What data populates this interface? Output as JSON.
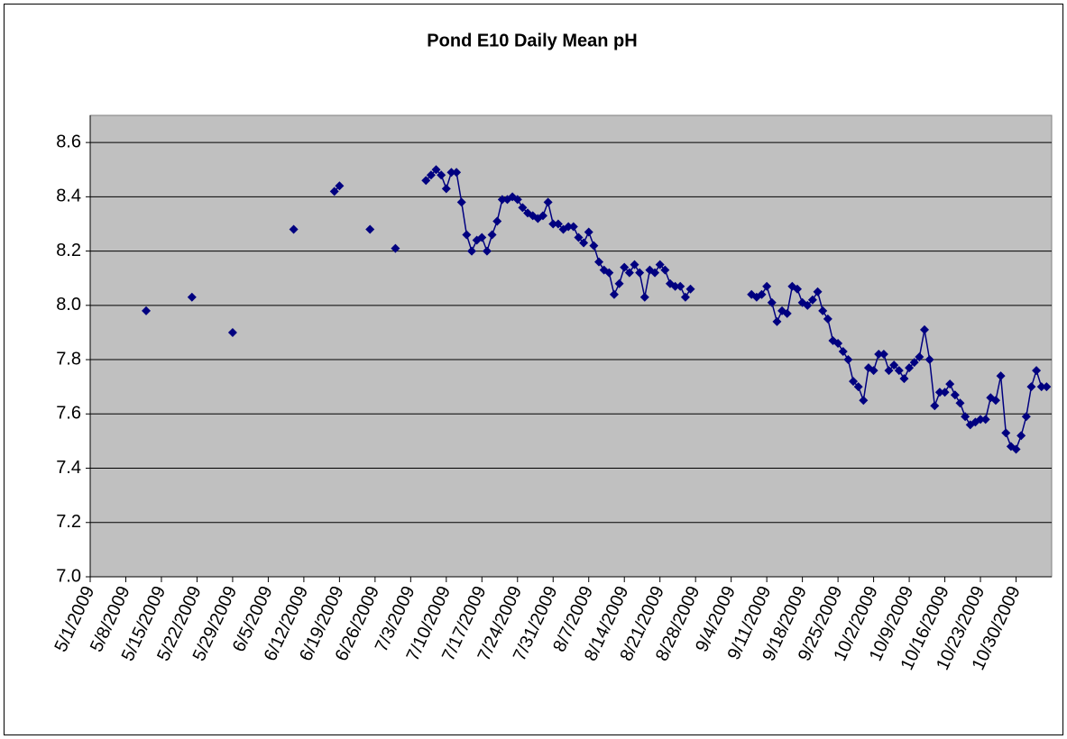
{
  "chart_data": {
    "type": "line",
    "title": "Pond E10 Daily Mean pH",
    "x": [
      "5/12/2009",
      "5/13/2009",
      "5/21/2009",
      "5/22/2009",
      "5/29/2009",
      "5/30/2009",
      "6/10/2009",
      "6/11/2009",
      "6/18/2009",
      "6/19/2009",
      "6/20/2009",
      "6/25/2009",
      "6/26/2009",
      "6/30/2009",
      "7/1/2009",
      "7/6/2009",
      "7/7/2009",
      "7/8/2009",
      "7/9/2009",
      "7/10/2009",
      "7/11/2009",
      "7/12/2009",
      "7/13/2009",
      "7/14/2009",
      "7/15/2009",
      "7/16/2009",
      "7/17/2009",
      "7/18/2009",
      "7/19/2009",
      "7/20/2009",
      "7/21/2009",
      "7/22/2009",
      "7/23/2009",
      "7/24/2009",
      "7/25/2009",
      "7/26/2009",
      "7/27/2009",
      "7/28/2009",
      "7/29/2009",
      "7/30/2009",
      "7/31/2009",
      "8/1/2009",
      "8/2/2009",
      "8/3/2009",
      "8/4/2009",
      "8/5/2009",
      "8/6/2009",
      "8/7/2009",
      "8/8/2009",
      "8/9/2009",
      "8/10/2009",
      "8/11/2009",
      "8/12/2009",
      "8/13/2009",
      "8/14/2009",
      "8/15/2009",
      "8/16/2009",
      "8/17/2009",
      "8/18/2009",
      "8/19/2009",
      "8/20/2009",
      "8/21/2009",
      "8/22/2009",
      "8/23/2009",
      "8/24/2009",
      "8/25/2009",
      "8/26/2009",
      "8/27/2009",
      "8/28/2009",
      "9/8/2009",
      "9/9/2009",
      "9/10/2009",
      "9/11/2009",
      "9/12/2009",
      "9/13/2009",
      "9/14/2009",
      "9/15/2009",
      "9/16/2009",
      "9/17/2009",
      "9/18/2009",
      "9/19/2009",
      "9/20/2009",
      "9/21/2009",
      "9/22/2009",
      "9/23/2009",
      "9/24/2009",
      "9/25/2009",
      "9/26/2009",
      "9/27/2009",
      "9/28/2009",
      "9/29/2009",
      "9/30/2009",
      "10/1/2009",
      "10/2/2009",
      "10/3/2009",
      "10/4/2009",
      "10/5/2009",
      "10/6/2009",
      "10/7/2009",
      "10/8/2009",
      "10/9/2009",
      "10/10/2009",
      "10/11/2009",
      "10/12/2009",
      "10/13/2009",
      "10/14/2009",
      "10/15/2009",
      "10/16/2009",
      "10/17/2009",
      "10/18/2009",
      "10/19/2009",
      "10/20/2009",
      "10/21/2009",
      "10/22/2009",
      "10/23/2009",
      "10/24/2009",
      "10/25/2009",
      "10/26/2009",
      "10/27/2009",
      "10/28/2009",
      "10/29/2009",
      "10/30/2009",
      "10/31/2009",
      "11/1/2009",
      "11/2/2009",
      "11/3/2009",
      "11/4/2009",
      "11/5/2009"
    ],
    "series": [
      {
        "color": "#000080",
        "values": [
          7.98,
          null,
          8.03,
          null,
          7.9,
          null,
          8.28,
          null,
          8.42,
          8.44,
          null,
          8.28,
          null,
          8.21,
          null,
          8.46,
          8.48,
          8.5,
          8.48,
          8.43,
          8.49,
          8.49,
          8.38,
          8.26,
          8.2,
          8.24,
          8.25,
          8.2,
          8.26,
          8.31,
          8.39,
          8.39,
          8.4,
          8.39,
          8.36,
          8.34,
          8.33,
          8.32,
          8.33,
          8.38,
          8.3,
          8.3,
          8.28,
          8.29,
          8.29,
          8.25,
          8.23,
          8.27,
          8.22,
          8.16,
          8.13,
          8.12,
          8.04,
          8.08,
          8.14,
          8.12,
          8.15,
          8.12,
          8.03,
          8.13,
          8.12,
          8.15,
          8.13,
          8.08,
          8.07,
          8.07,
          8.03,
          8.06,
          null,
          8.04,
          8.03,
          8.04,
          8.07,
          8.01,
          7.94,
          7.98,
          7.97,
          8.07,
          8.06,
          8.01,
          8.0,
          8.02,
          8.05,
          7.98,
          7.95,
          7.87,
          7.86,
          7.83,
          7.8,
          7.72,
          7.7,
          7.65,
          7.77,
          7.76,
          7.82,
          7.82,
          7.76,
          7.78,
          7.76,
          7.73,
          7.77,
          7.79,
          7.81,
          7.91,
          7.8,
          7.63,
          7.68,
          7.68,
          7.71,
          7.67,
          7.64,
          7.59,
          7.56,
          7.57,
          7.58,
          7.58,
          7.66,
          7.65,
          7.74,
          7.53,
          7.48,
          7.47,
          7.52,
          7.59,
          7.7,
          7.76,
          7.7,
          7.7
        ]
      }
    ],
    "xlim": [
      "5/1/2009",
      "11/6/2009"
    ],
    "xticks": [
      "5/1/2009",
      "5/8/2009",
      "5/15/2009",
      "5/22/2009",
      "5/29/2009",
      "6/5/2009",
      "6/12/2009",
      "6/19/2009",
      "6/26/2009",
      "7/3/2009",
      "7/10/2009",
      "7/17/2009",
      "7/24/2009",
      "7/31/2009",
      "8/7/2009",
      "8/14/2009",
      "8/21/2009",
      "8/28/2009",
      "9/4/2009",
      "9/11/2009",
      "9/18/2009",
      "9/25/2009",
      "10/2/2009",
      "10/9/2009",
      "10/16/2009",
      "10/23/2009",
      "10/30/2009"
    ],
    "ylim": [
      7.0,
      8.7
    ],
    "yticks": [
      {
        "value": 7.0,
        "label": "7.0"
      },
      {
        "value": 7.2,
        "label": "7.2"
      },
      {
        "value": 7.4,
        "label": "7.4"
      },
      {
        "value": 7.6,
        "label": "7.6"
      },
      {
        "value": 7.8,
        "label": "7.8"
      },
      {
        "value": 8.0,
        "label": "8.0"
      },
      {
        "value": 8.2,
        "label": "8.2"
      },
      {
        "value": 8.4,
        "label": "8.4"
      },
      {
        "value": 8.6,
        "label": "8.6"
      }
    ],
    "grid": true
  }
}
